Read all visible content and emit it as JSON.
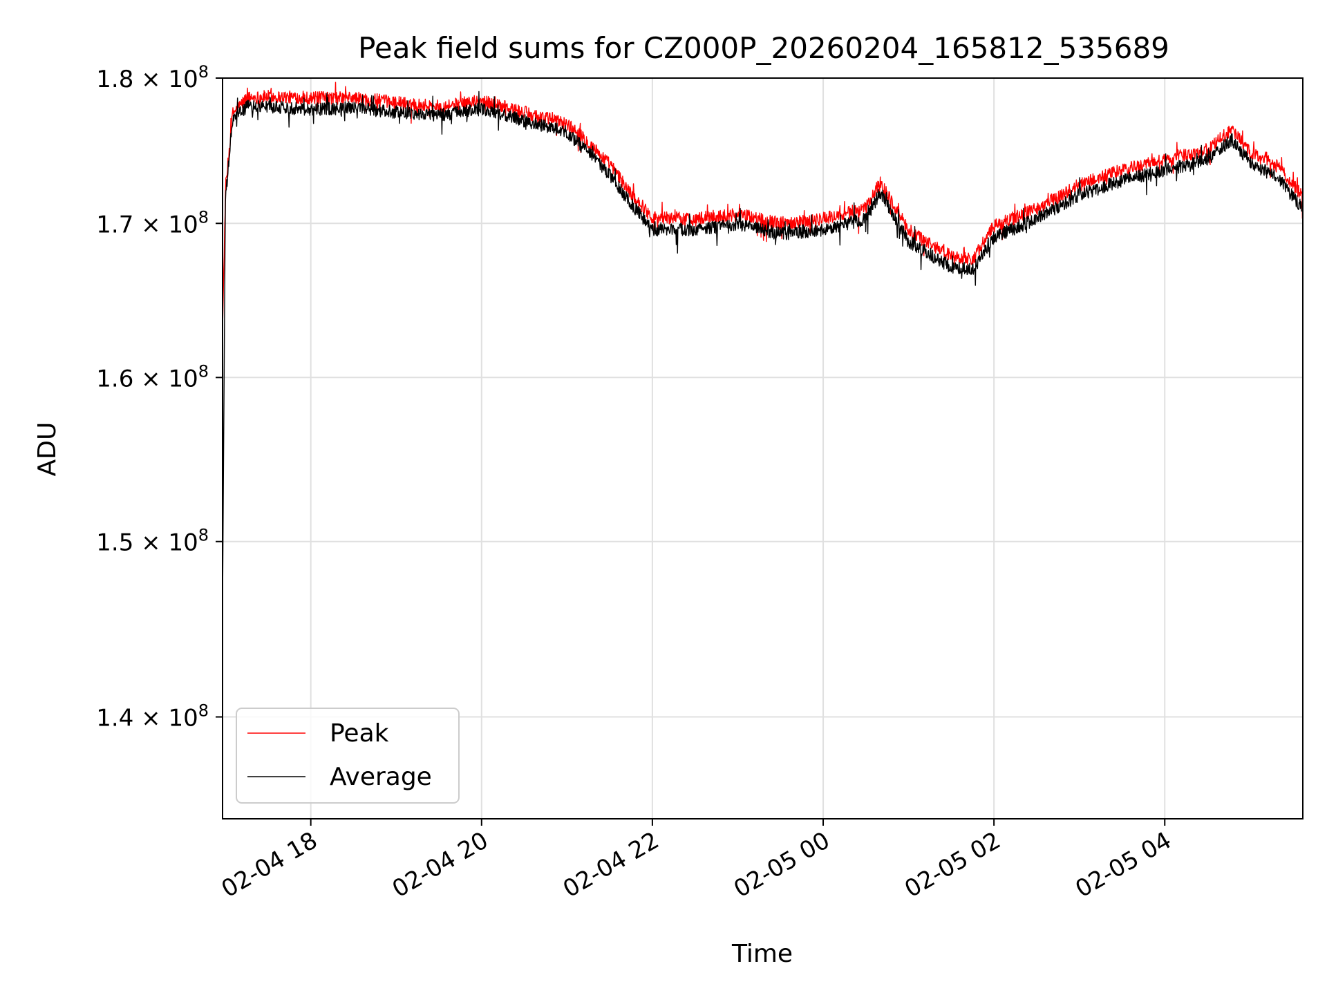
{
  "chart_data": {
    "type": "line",
    "title": "Peak field sums for CZ000P_20260204_165812_535689",
    "xlabel": "Time",
    "ylabel": "ADU",
    "y_scale": "log",
    "xlim": [
      "2026-02-04 16:58",
      "2026-02-05 05:37"
    ],
    "ylim": [
      134500000,
      180000000
    ],
    "grid": true,
    "legend_position": "lower-left",
    "x_ticks": [
      {
        "value": "2026-02-04 18:00",
        "label": "02-04 18"
      },
      {
        "value": "2026-02-04 20:00",
        "label": "02-04 20"
      },
      {
        "value": "2026-02-04 22:00",
        "label": "02-04 22"
      },
      {
        "value": "2026-02-05 00:00",
        "label": "02-05 00"
      },
      {
        "value": "2026-02-05 02:00",
        "label": "02-05 02"
      },
      {
        "value": "2026-02-05 04:00",
        "label": "02-05 04"
      }
    ],
    "y_ticks": [
      {
        "value": 140000000,
        "mantissa": "1.4",
        "base": "10",
        "exp": "8"
      },
      {
        "value": 150000000,
        "mantissa": "1.5",
        "base": "10",
        "exp": "8"
      },
      {
        "value": 160000000,
        "mantissa": "1.6",
        "base": "10",
        "exp": "8"
      },
      {
        "value": 170000000,
        "mantissa": "1.7",
        "base": "10",
        "exp": "8"
      },
      {
        "value": 180000000,
        "mantissa": "1.8",
        "base": "10",
        "exp": "8"
      }
    ],
    "series": [
      {
        "name": "Peak",
        "color": "#ff0000",
        "noise": 900000,
        "x": [
          "2026-02-04 16:58",
          "2026-02-04 17:00",
          "2026-02-04 17:05",
          "2026-02-04 17:15",
          "2026-02-04 17:30",
          "2026-02-04 18:00",
          "2026-02-04 18:30",
          "2026-02-04 19:00",
          "2026-02-04 19:30",
          "2026-02-04 20:00",
          "2026-02-04 20:30",
          "2026-02-04 21:00",
          "2026-02-04 21:15",
          "2026-02-04 21:30",
          "2026-02-04 21:45",
          "2026-02-04 22:00",
          "2026-02-04 22:30",
          "2026-02-04 23:00",
          "2026-02-04 23:30",
          "2026-02-05 00:00",
          "2026-02-05 00:30",
          "2026-02-05 00:40",
          "2026-02-05 01:00",
          "2026-02-05 01:30",
          "2026-02-05 01:45",
          "2026-02-05 02:00",
          "2026-02-05 02:30",
          "2026-02-05 03:00",
          "2026-02-05 03:30",
          "2026-02-05 04:00",
          "2026-02-05 04:30",
          "2026-02-05 04:47",
          "2026-02-05 05:00",
          "2026-02-05 05:20",
          "2026-02-05 05:37"
        ],
        "values": [
          163000000,
          172000000,
          177500000,
          178600000,
          178700000,
          178600000,
          178600000,
          178300000,
          178000000,
          178400000,
          177600000,
          176800000,
          175500000,
          174000000,
          172000000,
          170400000,
          170300000,
          170600000,
          170000000,
          170300000,
          171000000,
          172800000,
          169500000,
          167800000,
          167600000,
          169800000,
          171000000,
          172600000,
          173600000,
          174300000,
          175000000,
          176400000,
          174800000,
          173800000,
          171800000
        ]
      },
      {
        "name": "Average",
        "color": "#000000",
        "noise": 900000,
        "x": [
          "2026-02-04 16:58",
          "2026-02-04 17:00",
          "2026-02-04 17:05",
          "2026-02-04 17:15",
          "2026-02-04 17:30",
          "2026-02-04 18:00",
          "2026-02-04 18:30",
          "2026-02-04 19:00",
          "2026-02-04 19:30",
          "2026-02-04 20:00",
          "2026-02-04 20:30",
          "2026-02-04 21:00",
          "2026-02-04 21:15",
          "2026-02-04 21:30",
          "2026-02-04 21:45",
          "2026-02-04 22:00",
          "2026-02-04 22:30",
          "2026-02-04 23:00",
          "2026-02-04 23:30",
          "2026-02-05 00:00",
          "2026-02-05 00:30",
          "2026-02-05 00:40",
          "2026-02-05 01:00",
          "2026-02-05 01:30",
          "2026-02-05 01:45",
          "2026-02-05 02:00",
          "2026-02-05 02:30",
          "2026-02-05 03:00",
          "2026-02-05 03:30",
          "2026-02-05 04:00",
          "2026-02-05 04:30",
          "2026-02-05 04:47",
          "2026-02-05 05:00",
          "2026-02-05 05:20",
          "2026-02-05 05:37"
        ],
        "values": [
          146000000,
          171500000,
          177000000,
          178000000,
          178000000,
          177800000,
          177900000,
          177600000,
          177400000,
          177800000,
          177000000,
          176200000,
          174800000,
          173300000,
          171300000,
          169600000,
          169600000,
          169900000,
          169300000,
          169600000,
          170300000,
          172100000,
          168800000,
          167100000,
          166900000,
          169100000,
          170300000,
          171900000,
          172900000,
          173600000,
          174300000,
          175700000,
          174100000,
          173000000,
          171000000
        ]
      }
    ]
  }
}
